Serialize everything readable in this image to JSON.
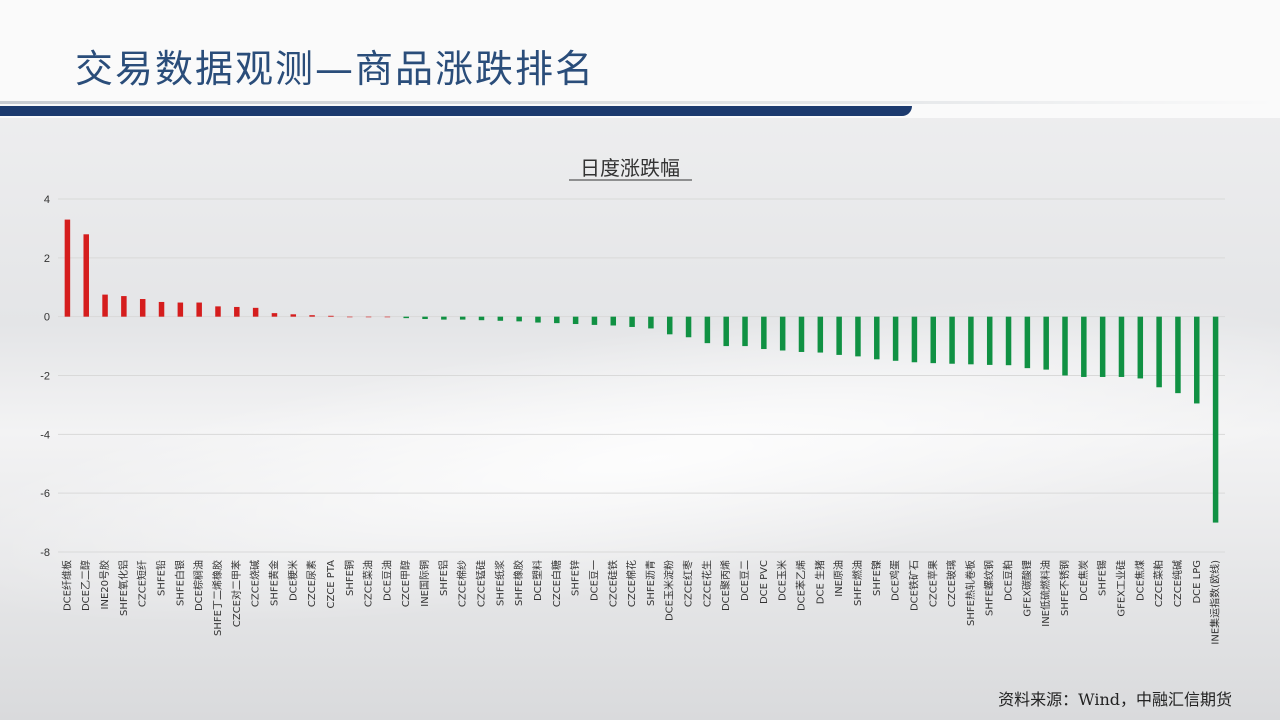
{
  "page": {
    "title": "交易数据观测—商品涨跌排名",
    "source": "资料来源：Wind，中融汇信期货"
  },
  "colors": {
    "up": "#d51d1d",
    "down": "#109143",
    "title": "#2a4d7a",
    "band": "#1c3a6e"
  },
  "chart_data": {
    "type": "bar",
    "title": "日度涨跌幅",
    "xlabel": "",
    "ylabel": "",
    "ylim": [
      -8,
      4
    ],
    "yticks": [
      4,
      2,
      0,
      -2,
      -4,
      -6,
      -8
    ],
    "grid": true,
    "categories": [
      "DCE纤维板",
      "DCE乙二醇",
      "INE20号胶",
      "SHFE氧化铝",
      "CZCE短纤",
      "SHFE铅",
      "SHFE白银",
      "DCE棕榈油",
      "SHFE丁二烯橡胶",
      "CZCE对二甲苯",
      "CZCE烧碱",
      "SHFE黄金",
      "DCE粳米",
      "CZCE尿素",
      "CZCE PTA",
      "SHFE铜",
      "CZCE菜油",
      "DCE豆油",
      "CZCE甲醇",
      "INE国际铜",
      "SHFE铝",
      "CZCE棉纱",
      "CZCE锰硅",
      "SHFE纸浆",
      "SHFE橡胶",
      "DCE塑料",
      "CZCE白糖",
      "SHFE锌",
      "DCE豆一",
      "CZCE硅铁",
      "CZCE棉花",
      "SHFE沥青",
      "DCE玉米淀粉",
      "CZCE红枣",
      "CZCE花生",
      "DCE聚丙烯",
      "DCE豆二",
      "DCE PVC",
      "DCE玉米",
      "DCE苯乙烯",
      "DCE 生猪",
      "INE原油",
      "SHFE燃油",
      "SHFE镍",
      "DCE鸡蛋",
      "DCE铁矿石",
      "CZCE苹果",
      "CZCE玻璃",
      "SHFE热轧卷板",
      "SHFE螺纹钢",
      "DCE豆粕",
      "GFEX碳酸锂",
      "INE低硫燃料油",
      "SHFE不锈钢",
      "DCE焦炭",
      "SHFE锡",
      "GFEX工业硅",
      "DCE焦煤",
      "CZCE菜粕",
      "CZCE纯碱",
      "DCE LPG",
      "INE集运指数(欧线)"
    ],
    "values": [
      3.3,
      2.8,
      0.75,
      0.7,
      0.6,
      0.5,
      0.48,
      0.48,
      0.35,
      0.33,
      0.3,
      0.12,
      0.08,
      0.05,
      0.03,
      0.0,
      0.0,
      0.0,
      -0.05,
      -0.08,
      -0.1,
      -0.1,
      -0.12,
      -0.14,
      -0.16,
      -0.2,
      -0.22,
      -0.25,
      -0.28,
      -0.3,
      -0.35,
      -0.4,
      -0.6,
      -0.7,
      -0.9,
      -1.0,
      -1.0,
      -1.1,
      -1.15,
      -1.2,
      -1.22,
      -1.3,
      -1.35,
      -1.45,
      -1.5,
      -1.55,
      -1.58,
      -1.6,
      -1.62,
      -1.64,
      -1.65,
      -1.75,
      -1.8,
      -2.0,
      -2.05,
      -2.05,
      -2.05,
      -2.1,
      -2.4,
      -2.6,
      -2.95,
      -7.0
    ]
  }
}
